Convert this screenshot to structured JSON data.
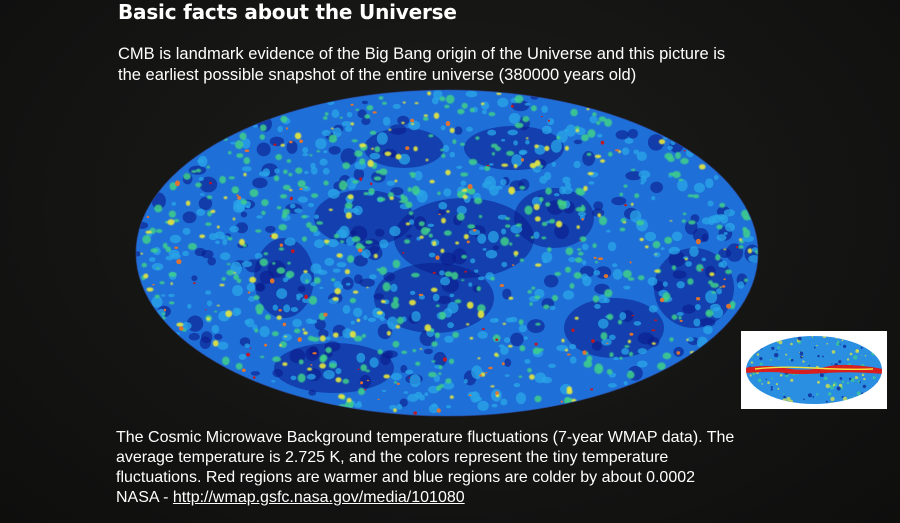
{
  "slide": {
    "title": "Basic facts about the Universe",
    "intro_lines": [
      "CMB is landmark evidence of the Big Bang origin of the Universe and this picture is",
      "the earliest possible snapshot of the entire universe (380000 years old)"
    ],
    "main_image": {
      "name": "cmb-all-sky-map",
      "palette": [
        "#0a1a8c",
        "#1e5ad6",
        "#2aa6e8",
        "#3fd08a",
        "#e8e83a",
        "#e8742a",
        "#c8141a"
      ]
    },
    "thumbnail_image": {
      "name": "cmb-map-with-galaxy-thumbnail",
      "band_color": "#d81e1e"
    },
    "caption_lines": [
      "The Cosmic Microwave Background temperature fluctuations (7-year WMAP data). The",
      "average temperature is 2.725 K, and the colors represent the tiny temperature",
      "fluctuations. Red regions are warmer and blue regions are colder by about 0.0002"
    ],
    "source_prefix": "NASA - ",
    "source_link": "http://wmap.gsfc.nasa.gov/media/101080"
  }
}
